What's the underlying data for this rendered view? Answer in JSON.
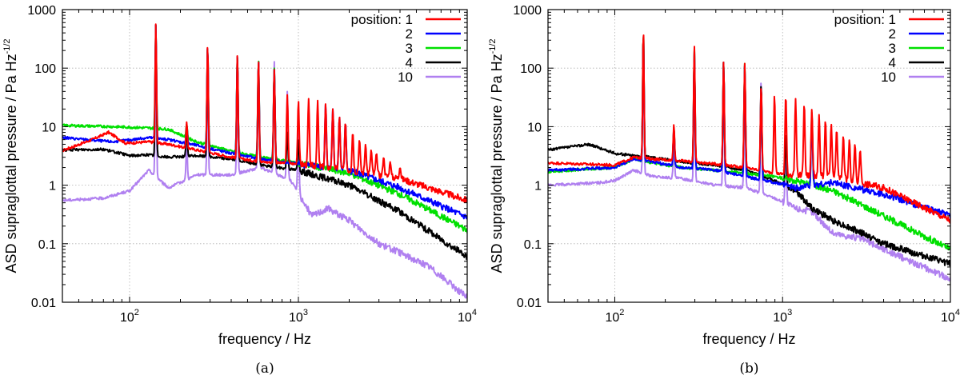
{
  "chart_data": [
    {
      "type": "line",
      "caption": "(a)",
      "xlabel": "frequency / Hz",
      "ylabel": "ASD supraglottal pressure / Pa Hz",
      "ylabel_exponent": "-1/2",
      "x_scale": "log",
      "y_scale": "log",
      "xlim": [
        40,
        10000
      ],
      "ylim": [
        0.01,
        1000
      ],
      "grid": true,
      "xticks": [
        {
          "value": 100,
          "base": "10",
          "exp": "2"
        },
        {
          "value": 1000,
          "base": "10",
          "exp": "3"
        },
        {
          "value": 10000,
          "base": "10",
          "exp": "4"
        }
      ],
      "yticks": [
        {
          "value": 0.01,
          "label": "0.01"
        },
        {
          "value": 0.1,
          "label": "0.1"
        },
        {
          "value": 1,
          "label": "1"
        },
        {
          "value": 10,
          "label": "10"
        },
        {
          "value": 100,
          "label": "100"
        },
        {
          "value": 1000,
          "label": "1000"
        }
      ],
      "legend_title": "position:",
      "legend_position": "top-right",
      "series": [
        {
          "name": "1",
          "color": "#ff0000",
          "baseline": [
            [
              40,
              3.9
            ],
            [
              60,
              6
            ],
            [
              75,
              8
            ],
            [
              95,
              5.2
            ],
            [
              130,
              5.5
            ],
            [
              170,
              5
            ],
            [
              250,
              4
            ],
            [
              400,
              3
            ],
            [
              600,
              2.5
            ],
            [
              1000,
              2.3
            ],
            [
              2000,
              1.8
            ],
            [
              4000,
              1.3
            ],
            [
              10000,
              0.55
            ]
          ],
          "peaks": [
            [
              143,
              580
            ],
            [
              218,
              12
            ],
            [
              290,
              260
            ],
            [
              435,
              170
            ],
            [
              580,
              140
            ],
            [
              720,
              95
            ],
            [
              860,
              35
            ],
            [
              1000,
              28
            ],
            [
              1150,
              30
            ],
            [
              1300,
              28
            ],
            [
              1450,
              25
            ],
            [
              1600,
              20
            ],
            [
              1750,
              15
            ],
            [
              1900,
              12
            ],
            [
              2100,
              8
            ],
            [
              2300,
              6
            ],
            [
              2500,
              5
            ],
            [
              2700,
              4
            ],
            [
              2900,
              3.5
            ],
            [
              3200,
              3
            ],
            [
              3500,
              2.5
            ],
            [
              4000,
              2
            ]
          ]
        },
        {
          "name": "2",
          "color": "#0000ff",
          "baseline": [
            [
              40,
              6.5
            ],
            [
              80,
              5.5
            ],
            [
              130,
              6.5
            ],
            [
              170,
              6
            ],
            [
              250,
              4.8
            ],
            [
              400,
              3.5
            ],
            [
              600,
              2.8
            ],
            [
              1000,
              2.3
            ],
            [
              2000,
              1.8
            ],
            [
              4000,
              0.9
            ],
            [
              10000,
              0.28
            ]
          ],
          "peaks": [
            [
              143,
              560
            ],
            [
              218,
              11
            ],
            [
              290,
              250
            ],
            [
              435,
              165
            ],
            [
              580,
              140
            ],
            [
              720,
              95
            ],
            [
              1450,
              24
            ],
            [
              1600,
              20
            ],
            [
              1750,
              15
            ],
            [
              1900,
              12
            ]
          ]
        },
        {
          "name": "3",
          "color": "#00e000",
          "baseline": [
            [
              40,
              10.5
            ],
            [
              80,
              10
            ],
            [
              130,
              9.5
            ],
            [
              170,
              9
            ],
            [
              250,
              5.5
            ],
            [
              400,
              3.8
            ],
            [
              600,
              3
            ],
            [
              1000,
              2.4
            ],
            [
              2000,
              1.6
            ],
            [
              4000,
              0.7
            ],
            [
              10000,
              0.17
            ]
          ],
          "peaks": [
            [
              143,
              540
            ],
            [
              218,
              11
            ],
            [
              290,
              240
            ],
            [
              435,
              160
            ],
            [
              580,
              145
            ],
            [
              720,
              100
            ]
          ]
        },
        {
          "name": "4",
          "color": "#000000",
          "baseline": [
            [
              40,
              4
            ],
            [
              70,
              4.1
            ],
            [
              100,
              3.2
            ],
            [
              130,
              3.3
            ],
            [
              170,
              3
            ],
            [
              250,
              3.2
            ],
            [
              400,
              2.8
            ],
            [
              600,
              2.2
            ],
            [
              1000,
              1.8
            ],
            [
              2000,
              1
            ],
            [
              4000,
              0.35
            ],
            [
              10000,
              0.06
            ]
          ],
          "peaks": [
            [
              143,
              560
            ],
            [
              218,
              10
            ],
            [
              290,
              230
            ],
            [
              435,
              160
            ],
            [
              580,
              130
            ],
            [
              720,
              100
            ],
            [
              860,
              8
            ],
            [
              1000,
              6
            ]
          ]
        },
        {
          "name": "10",
          "color": "#b080f0",
          "baseline": [
            [
              40,
              0.55
            ],
            [
              70,
              0.6
            ],
            [
              100,
              0.8
            ],
            [
              130,
              1.8
            ],
            [
              170,
              0.9
            ],
            [
              250,
              1.5
            ],
            [
              400,
              1.5
            ],
            [
              600,
              2
            ],
            [
              900,
              1.2
            ],
            [
              1200,
              0.3
            ],
            [
              1500,
              0.4
            ],
            [
              2000,
              0.25
            ],
            [
              3000,
              0.1
            ],
            [
              4000,
              0.07
            ],
            [
              6000,
              0.04
            ],
            [
              10000,
              0.012
            ]
          ],
          "peaks": [
            [
              143,
              300
            ],
            [
              218,
              5
            ],
            [
              290,
              60
            ],
            [
              435,
              40
            ],
            [
              580,
              60
            ],
            [
              720,
              130
            ],
            [
              860,
              40
            ],
            [
              1000,
              8
            ]
          ]
        }
      ]
    },
    {
      "type": "line",
      "caption": "(b)",
      "xlabel": "frequency / Hz",
      "ylabel": "ASD supraglottal pressure / Pa Hz",
      "ylabel_exponent": "-1/2",
      "x_scale": "log",
      "y_scale": "log",
      "xlim": [
        40,
        10000
      ],
      "ylim": [
        0.01,
        1000
      ],
      "grid": true,
      "xticks": [
        {
          "value": 100,
          "base": "10",
          "exp": "2"
        },
        {
          "value": 1000,
          "base": "10",
          "exp": "3"
        },
        {
          "value": 10000,
          "base": "10",
          "exp": "4"
        }
      ],
      "yticks": [
        {
          "value": 0.01,
          "label": "0.01"
        },
        {
          "value": 0.1,
          "label": "0.1"
        },
        {
          "value": 1,
          "label": "1"
        },
        {
          "value": 10,
          "label": "10"
        },
        {
          "value": 100,
          "label": "100"
        },
        {
          "value": 1000,
          "label": "1000"
        }
      ],
      "legend_title": "position:",
      "legend_position": "top-right",
      "series": [
        {
          "name": "1",
          "color": "#ff0000",
          "baseline": [
            [
              40,
              2.4
            ],
            [
              100,
              2.2
            ],
            [
              130,
              3
            ],
            [
              170,
              2.8
            ],
            [
              250,
              2.6
            ],
            [
              400,
              2.3
            ],
            [
              600,
              2
            ],
            [
              900,
              1.6
            ],
            [
              1200,
              1.5
            ],
            [
              2000,
              1.4
            ],
            [
              4000,
              0.9
            ],
            [
              10000,
              0.25
            ]
          ],
          "peaks": [
            [
              148,
              490
            ],
            [
              225,
              11
            ],
            [
              298,
              240
            ],
            [
              445,
              130
            ],
            [
              595,
              120
            ],
            [
              745,
              50
            ],
            [
              895,
              35
            ],
            [
              1045,
              35
            ],
            [
              1195,
              30
            ],
            [
              1345,
              25
            ],
            [
              1495,
              20
            ],
            [
              1650,
              16
            ],
            [
              1800,
              13
            ],
            [
              1950,
              11
            ],
            [
              2100,
              9
            ],
            [
              2300,
              7
            ],
            [
              2500,
              6
            ],
            [
              2700,
              5
            ],
            [
              2900,
              4
            ]
          ]
        },
        {
          "name": "2",
          "color": "#0000ff",
          "baseline": [
            [
              40,
              1.8
            ],
            [
              100,
              2
            ],
            [
              130,
              2.8
            ],
            [
              170,
              2.5
            ],
            [
              250,
              2
            ],
            [
              400,
              1.8
            ],
            [
              600,
              1.4
            ],
            [
              900,
              1.1
            ],
            [
              1200,
              0.9
            ],
            [
              1500,
              1
            ],
            [
              2000,
              1.1
            ],
            [
              4000,
              0.7
            ],
            [
              10000,
              0.3
            ]
          ],
          "peaks": [
            [
              148,
              420
            ],
            [
              225,
              10
            ],
            [
              298,
              200
            ],
            [
              445,
              130
            ],
            [
              595,
              110
            ],
            [
              745,
              45
            ],
            [
              1495,
              15
            ]
          ]
        },
        {
          "name": "3",
          "color": "#00e000",
          "baseline": [
            [
              40,
              1.7
            ],
            [
              100,
              2
            ],
            [
              130,
              2.8
            ],
            [
              170,
              2.4
            ],
            [
              250,
              2
            ],
            [
              400,
              1.8
            ],
            [
              600,
              1.6
            ],
            [
              900,
              1.4
            ],
            [
              1200,
              1.2
            ],
            [
              2000,
              0.8
            ],
            [
              4000,
              0.3
            ],
            [
              10000,
              0.08
            ]
          ],
          "peaks": [
            [
              148,
              460
            ],
            [
              225,
              10
            ],
            [
              298,
              220
            ],
            [
              445,
              130
            ],
            [
              595,
              120
            ],
            [
              745,
              45
            ],
            [
              1495,
              18
            ]
          ]
        },
        {
          "name": "4",
          "color": "#000000",
          "baseline": [
            [
              40,
              4
            ],
            [
              70,
              5
            ],
            [
              100,
              3.5
            ],
            [
              130,
              3.2
            ],
            [
              170,
              3
            ],
            [
              250,
              2.5
            ],
            [
              400,
              2.2
            ],
            [
              600,
              1.8
            ],
            [
              900,
              1.2
            ],
            [
              1200,
              0.8
            ],
            [
              1500,
              0.4
            ],
            [
              2000,
              0.25
            ],
            [
              3000,
              0.15
            ],
            [
              4000,
              0.1
            ],
            [
              10000,
              0.045
            ]
          ],
          "peaks": [
            [
              148,
              480
            ],
            [
              225,
              9
            ],
            [
              298,
              210
            ],
            [
              445,
              130
            ],
            [
              595,
              110
            ],
            [
              745,
              55
            ],
            [
              1045,
              8
            ]
          ]
        },
        {
          "name": "10",
          "color": "#b080f0",
          "baseline": [
            [
              40,
              1
            ],
            [
              80,
              1.1
            ],
            [
              100,
              1.2
            ],
            [
              130,
              1.8
            ],
            [
              170,
              1.4
            ],
            [
              250,
              1.3
            ],
            [
              400,
              1
            ],
            [
              600,
              0.9
            ],
            [
              900,
              0.6
            ],
            [
              1200,
              0.4
            ],
            [
              1500,
              0.35
            ],
            [
              2000,
              0.15
            ],
            [
              3000,
              0.12
            ],
            [
              4000,
              0.08
            ],
            [
              10000,
              0.025
            ]
          ],
          "peaks": [
            [
              148,
              200
            ],
            [
              225,
              6
            ],
            [
              298,
              80
            ],
            [
              445,
              60
            ],
            [
              595,
              60
            ],
            [
              745,
              65
            ],
            [
              1045,
              5
            ]
          ]
        }
      ]
    }
  ]
}
